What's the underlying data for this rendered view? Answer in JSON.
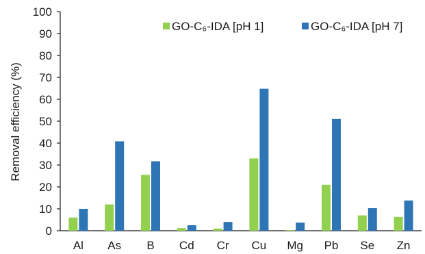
{
  "chart_data": {
    "type": "bar",
    "categories": [
      "Al",
      "As",
      "B",
      "Cd",
      "Cr",
      "Cu",
      "Mg",
      "Pb",
      "Se",
      "Zn"
    ],
    "series": [
      {
        "name": "GO-C₆-IDA [pH 1]",
        "color": "#92d050",
        "values": [
          6,
          12,
          25.5,
          1.2,
          1,
          33,
          0.3,
          21,
          7,
          6.3
        ]
      },
      {
        "name": "GO-C₆-IDA [pH 7]",
        "color": "#2e75b6",
        "values": [
          10,
          40.8,
          31.7,
          2.5,
          4,
          64.8,
          3.7,
          51,
          10.3,
          13.8
        ]
      }
    ],
    "ylabel": "Removal efficiency (%)",
    "xlabel": "",
    "ylim": [
      0,
      100
    ],
    "yticks": [
      0,
      10,
      20,
      30,
      40,
      50,
      60,
      70,
      80,
      90,
      100
    ],
    "grid": false,
    "legend_position": "top-right"
  }
}
